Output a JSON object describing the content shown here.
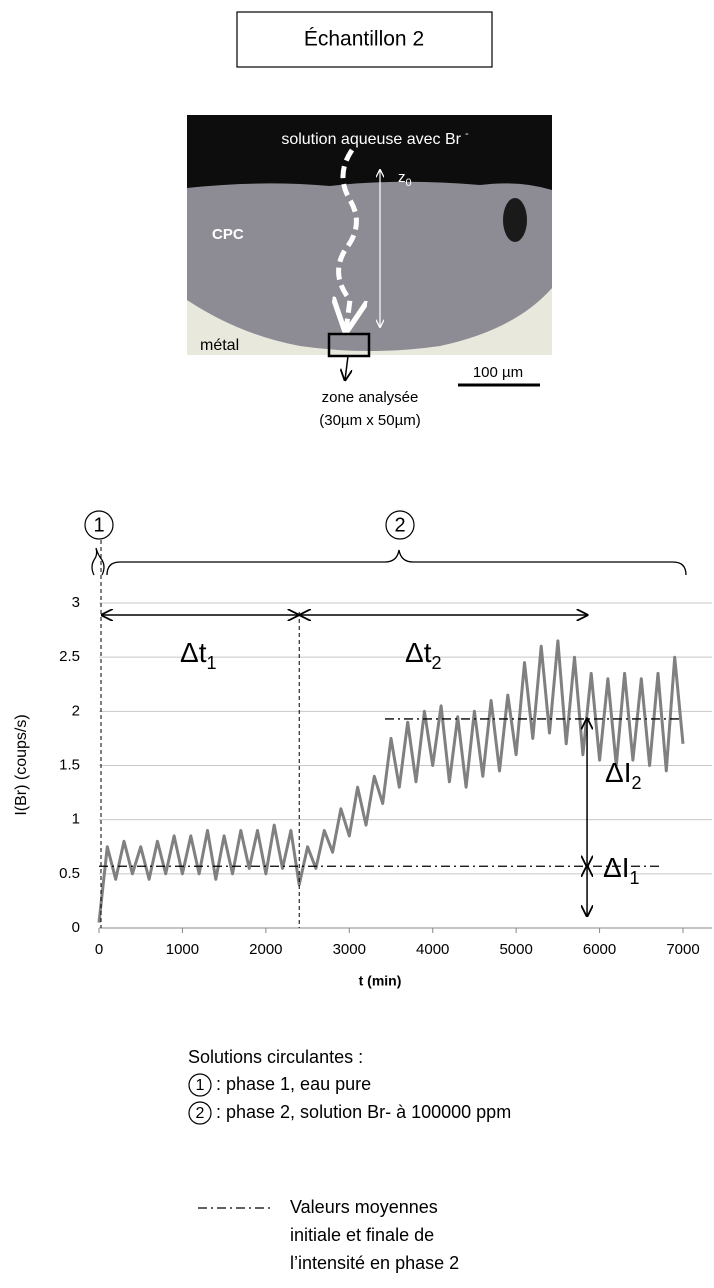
{
  "title": "Échantillon 2",
  "photo": {
    "solution": "solution aqueuse avec Br",
    "solution_sup": "-",
    "z": "z",
    "z_sub": "0",
    "cpc": "CPC",
    "metal": "métal",
    "scale": "100 µm",
    "zone": "zone analysée",
    "zone_size": "(30µm x 50µm)"
  },
  "chart_data": {
    "type": "line",
    "x_label": "t (min)",
    "y_label": "I(Br) (coups/s)",
    "x": [
      0,
      100,
      200,
      300,
      400,
      500,
      600,
      700,
      800,
      900,
      1000,
      1100,
      1200,
      1300,
      1400,
      1500,
      1600,
      1700,
      1800,
      1900,
      2000,
      2100,
      2200,
      2300,
      2400,
      2500,
      2600,
      2700,
      2800,
      2900,
      3000,
      3100,
      3200,
      3300,
      3400,
      3500,
      3600,
      3700,
      3800,
      3900,
      4000,
      4100,
      4200,
      4300,
      4400,
      4500,
      4600,
      4700,
      4800,
      4900,
      5000,
      5100,
      5200,
      5300,
      5400,
      5500,
      5600,
      5700,
      5800,
      5900,
      6000,
      6100,
      6200,
      6300,
      6400,
      6500,
      6600,
      6700,
      6800,
      6900,
      7000
    ],
    "series": [
      {
        "color": "#808080",
        "values": [
          0.05,
          0.75,
          0.45,
          0.8,
          0.5,
          0.75,
          0.45,
          0.8,
          0.5,
          0.85,
          0.5,
          0.85,
          0.5,
          0.9,
          0.45,
          0.85,
          0.5,
          0.9,
          0.55,
          0.9,
          0.5,
          0.95,
          0.55,
          0.9,
          0.4,
          0.75,
          0.55,
          0.9,
          0.7,
          1.1,
          0.85,
          1.3,
          0.95,
          1.4,
          1.15,
          1.75,
          1.3,
          1.9,
          1.35,
          2.0,
          1.5,
          2.05,
          1.35,
          1.95,
          1.3,
          2.0,
          1.4,
          2.1,
          1.45,
          2.15,
          1.6,
          2.45,
          1.75,
          2.6,
          1.8,
          2.65,
          1.7,
          2.5,
          1.6,
          2.35,
          1.55,
          2.3,
          1.5,
          2.35,
          1.55,
          2.3,
          1.5,
          2.35,
          1.45,
          2.5,
          1.7
        ]
      }
    ],
    "xlim": [
      0,
      7000
    ],
    "xticks": [
      0,
      1000,
      2000,
      3000,
      4000,
      5000,
      6000,
      7000
    ],
    "ylim": [
      0,
      3
    ],
    "yticks": [
      0,
      0.5,
      1,
      1.5,
      2,
      2.5,
      3
    ],
    "grid": true,
    "phases": [
      "1",
      "2"
    ],
    "delta_t1": {
      "label": "Δt",
      "sub": "1",
      "span": [
        0,
        2400
      ]
    },
    "delta_t2": {
      "label": "Δt",
      "sub": "2",
      "span": [
        2400,
        5850
      ]
    },
    "mean_initial": 0.57,
    "mean_final": 1.93,
    "delta_I2": {
      "label": "ΔI",
      "sub": "2"
    },
    "delta_I1": {
      "label": "ΔI",
      "sub": "1"
    }
  },
  "legend": {
    "heading": "Solutions circulantes :",
    "phases": [
      {
        "number": "1",
        "text": ": phase 1, eau pure"
      },
      {
        "number": "2",
        "text": ": phase 2, solution Br- à 100000 ppm"
      }
    ],
    "mean_lines": [
      "Valeurs moyennes",
      "initiale et finale de",
      "l’intensité en phase 2"
    ]
  }
}
